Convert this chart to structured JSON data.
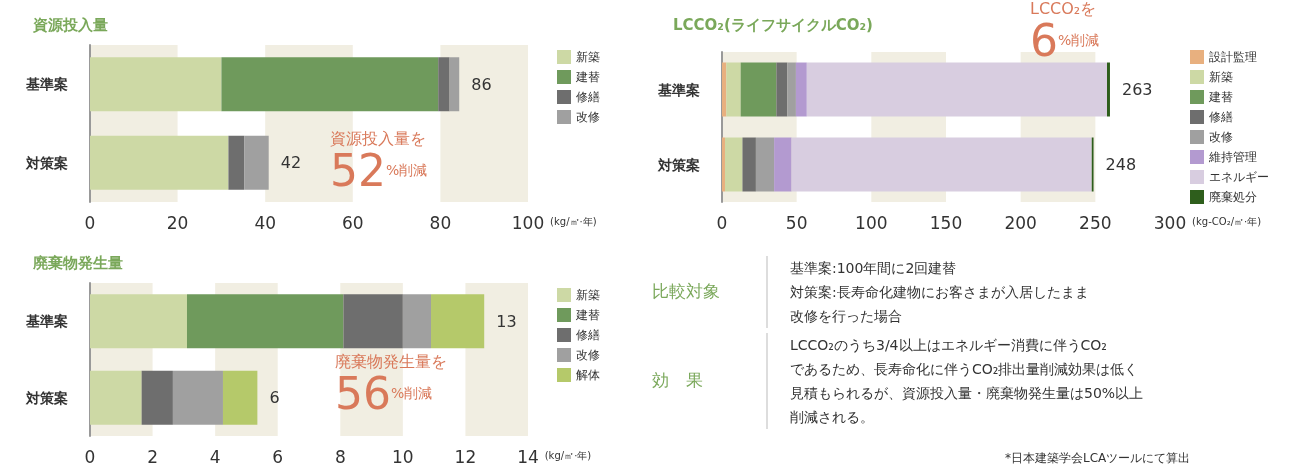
{
  "chart_data": [
    {
      "type": "bar",
      "title": "資源投入量",
      "xlabel": "(kg/㎡·年)",
      "categories": [
        "基準案",
        "対策案"
      ],
      "stacked": true,
      "orientation": "horizontal",
      "xlim": [
        0,
        100
      ],
      "xticks": [
        0,
        20,
        40,
        60,
        80,
        100
      ],
      "bands": [
        {
          "axis": "x",
          "from": 0,
          "to": 20,
          "color": "#f1eee2"
        },
        {
          "axis": "x",
          "from": 40,
          "to": 60,
          "color": "#f1eee2"
        },
        {
          "axis": "x",
          "from": 80,
          "to": 100,
          "color": "#f1eee2"
        }
      ],
      "legend": "right",
      "totals": [
        "86",
        "42"
      ],
      "series": [
        {
          "name": "新築",
          "color": "#cdd9a5",
          "values": [
            30,
            31.6
          ]
        },
        {
          "name": "建替",
          "color": "#6f9a5c",
          "values": [
            49.5,
            0
          ]
        },
        {
          "name": "修繕",
          "color": "#6e6e6e",
          "values": [
            2.6,
            3.6
          ]
        },
        {
          "name": "改修",
          "color": "#a0a0a0",
          "values": [
            2.2,
            5.6
          ]
        }
      ],
      "annotations": [
        "資源投入量を",
        "52%削減"
      ]
    },
    {
      "type": "bar",
      "title": "LCCO₂(ライフサイクルCO₂)",
      "xlabel": "(kg-CO₂/㎡·年)",
      "categories": [
        "基準案",
        "対策案"
      ],
      "stacked": true,
      "orientation": "horizontal",
      "xlim": [
        0,
        300
      ],
      "xticks": [
        0,
        50,
        100,
        150,
        200,
        250,
        300
      ],
      "bands": [
        {
          "axis": "x",
          "from": 0,
          "to": 50,
          "color": "#f1eee2"
        },
        {
          "axis": "x",
          "from": 100,
          "to": 150,
          "color": "#f1eee2"
        },
        {
          "axis": "x",
          "from": 200,
          "to": 250,
          "color": "#f1eee2"
        }
      ],
      "legend": "right",
      "totals": [
        "263",
        "248"
      ],
      "series": [
        {
          "name": "設計監理",
          "color": "#e8b07f",
          "values": [
            2.9,
            2
          ]
        },
        {
          "name": "新築",
          "color": "#cdd9a5",
          "values": [
            9.6,
            11.7
          ]
        },
        {
          "name": "建替",
          "color": "#6f9a5c",
          "values": [
            23.9,
            0
          ]
        },
        {
          "name": "修繕",
          "color": "#6e6e6e",
          "values": [
            7.3,
            9
          ]
        },
        {
          "name": "改修",
          "color": "#a0a0a0",
          "values": [
            5.8,
            12.2
          ]
        },
        {
          "name": "維持管理",
          "color": "#b39ad0",
          "values": [
            7.3,
            11.7
          ]
        },
        {
          "name": "エネルギー",
          "color": "#d8cde0",
          "values": [
            201,
            201
          ]
        },
        {
          "name": "廃棄処分",
          "color": "#2e5e1c",
          "values": [
            2,
            1.2
          ]
        }
      ],
      "annotations": [
        "LCCO₂を",
        "6%削減"
      ]
    },
    {
      "type": "bar",
      "title": "廃棄物発生量",
      "xlabel": "(kg/㎡·年)",
      "categories": [
        "基準案",
        "対策案"
      ],
      "stacked": true,
      "orientation": "horizontal",
      "xlim": [
        0,
        14
      ],
      "xticks": [
        0,
        2,
        4,
        6,
        8,
        10,
        12,
        14
      ],
      "bands": [
        {
          "axis": "x",
          "from": 0,
          "to": 2,
          "color": "#f1eee2"
        },
        {
          "axis": "x",
          "from": 4,
          "to": 6,
          "color": "#f1eee2"
        },
        {
          "axis": "x",
          "from": 8,
          "to": 10,
          "color": "#f1eee2"
        },
        {
          "axis": "x",
          "from": 12,
          "to": 14,
          "color": "#f1eee2"
        }
      ],
      "legend": "right",
      "totals": [
        "13",
        "6"
      ],
      "series": [
        {
          "name": "新築",
          "color": "#cdd9a5",
          "values": [
            3.1,
            1.65
          ]
        },
        {
          "name": "建替",
          "color": "#6f9a5c",
          "values": [
            5,
            0
          ]
        },
        {
          "name": "修繕",
          "color": "#6e6e6e",
          "values": [
            1.9,
            1
          ]
        },
        {
          "name": "改修",
          "color": "#a0a0a0",
          "values": [
            0.9,
            1.6
          ]
        },
        {
          "name": "解体",
          "color": "#b5c96a",
          "values": [
            1.7,
            1.1
          ]
        }
      ],
      "annotations": [
        "廃棄物発生量を",
        "56%削減"
      ]
    },
    {
      "type": "other",
      "annotations": [
        "比較対象",
        "基準案:100年間に2回建替",
        "対策案:長寿命化建物にお客さまが入居したまま",
        "改修を行った場合",
        "効　果",
        "LCCO₂のうち3/4以上はエネルギー消費に伴うCO₂",
        "であるため、長寿命化に伴うCO₂排出量削減効果は低く",
        "見積もられるが、資源投入量・廃棄物発生量は50%以上",
        "削減される。",
        "*日本建築学会LCAツールにて算出"
      ]
    }
  ]
}
